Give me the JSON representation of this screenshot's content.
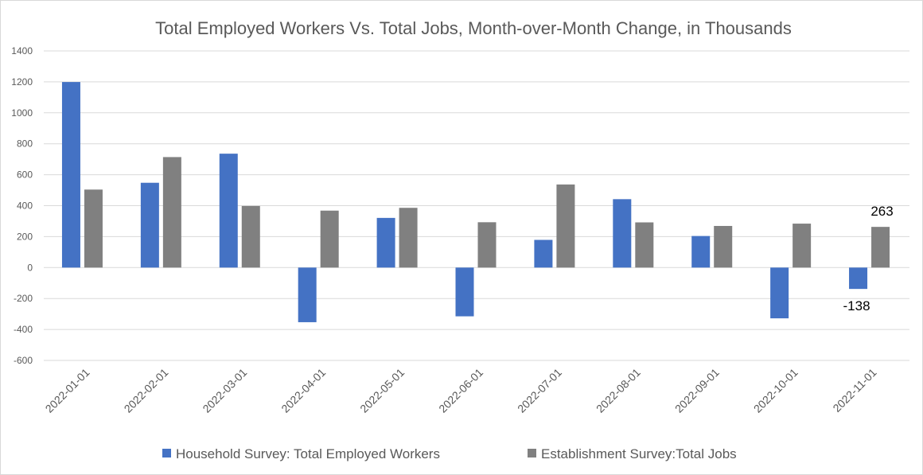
{
  "chart_data": {
    "type": "bar",
    "title": "Total Employed Workers Vs. Total Jobs, Month-over-Month Change, in Thousands",
    "categories": [
      "2022-01-01",
      "2022-02-01",
      "2022-03-01",
      "2022-04-01",
      "2022-05-01",
      "2022-06-01",
      "2022-07-01",
      "2022-08-01",
      "2022-09-01",
      "2022-10-01",
      "2022-11-01"
    ],
    "series": [
      {
        "name": "Household Survey: Total Employed Workers",
        "color": "#4472c4",
        "values": [
          1199,
          548,
          736,
          -353,
          321,
          -315,
          179,
          442,
          204,
          -328,
          -138
        ]
      },
      {
        "name": "Establishment Survey:Total Jobs",
        "color": "#808080",
        "values": [
          504,
          714,
          398,
          368,
          386,
          293,
          537,
          292,
          269,
          284,
          263
        ]
      }
    ],
    "ylim": [
      -600,
      1400
    ],
    "yticks": [
      1400,
      1200,
      1000,
      800,
      600,
      400,
      200,
      0,
      -200,
      -400,
      -600
    ],
    "grid": true,
    "legend_position": "bottom",
    "data_labels": [
      {
        "series": 0,
        "index": 10,
        "text": "-138"
      },
      {
        "series": 1,
        "index": 10,
        "text": "263"
      }
    ]
  }
}
